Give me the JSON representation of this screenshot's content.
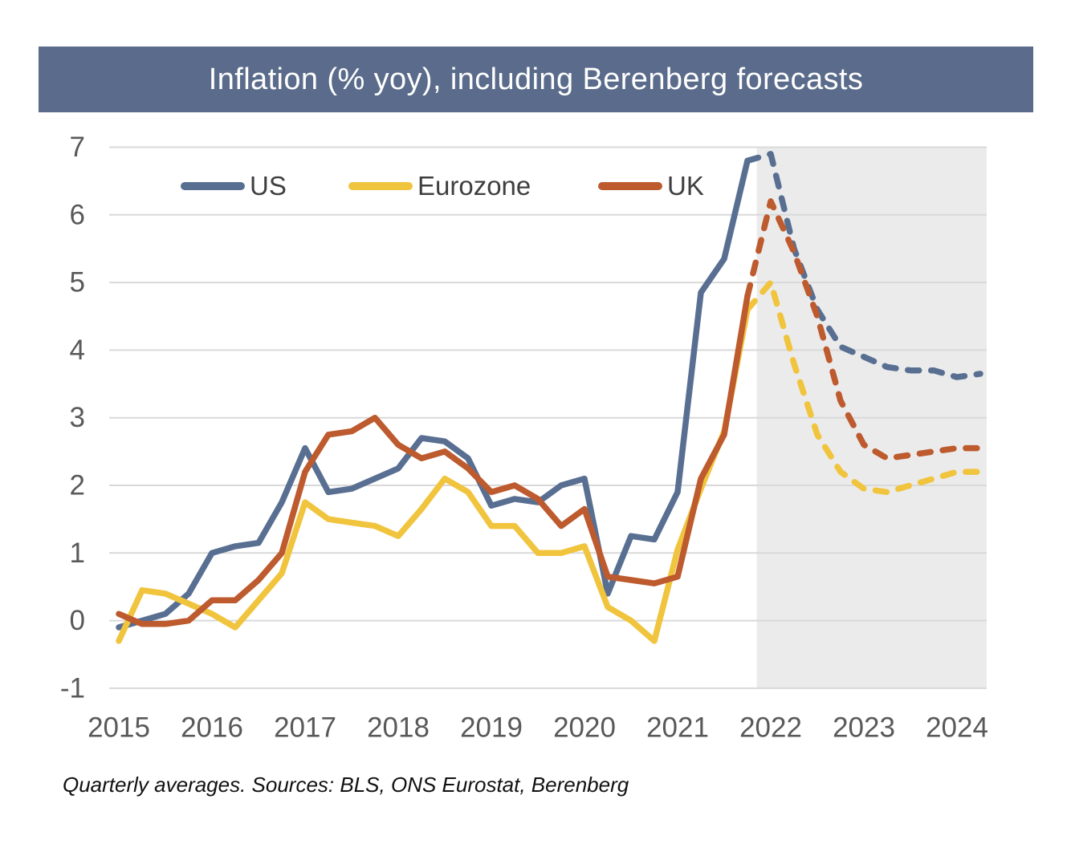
{
  "title": "Inflation (% yoy), including Berenberg forecasts",
  "footnote": "Quarterly averages. Sources: BLS, ONS Eurostat, Berenberg",
  "colors": {
    "title_bar_bg": "#5a6b8b",
    "title_text": "#ffffff",
    "us": "#586f92",
    "eurozone": "#f1c43e",
    "uk": "#bd5a2e",
    "forecast_shade": "#ebebeb",
    "gridline": "#d9d9d9",
    "axis_text": "#595959",
    "legend_text": "#3f3f3f",
    "background": "#ffffff"
  },
  "legend": [
    {
      "label": "US"
    },
    {
      "label": "Eurozone"
    },
    {
      "label": "UK"
    }
  ],
  "chart_data": {
    "type": "line",
    "title": "Inflation (% yoy), including Berenberg forecasts",
    "xlabel": "",
    "ylabel": "",
    "ylim": [
      -1,
      7
    ],
    "y_ticks": [
      7,
      6,
      5,
      4,
      3,
      2,
      1,
      0,
      -1
    ],
    "x_ticks": [
      2015,
      2016,
      2017,
      2018,
      2019,
      2020,
      2021,
      2022,
      2023,
      2024
    ],
    "grid": "horizontal",
    "legend_position": "top-inside",
    "line_style_note": "solid = history, dashed = Berenberg forecast, shaded region = forecast period",
    "forecast_start_index": 27,
    "forecast_shade_start_x": 2021.85,
    "x": [
      2015,
      2015.25,
      2015.5,
      2015.75,
      2016,
      2016.25,
      2016.5,
      2016.75,
      2017,
      2017.25,
      2017.5,
      2017.75,
      2018,
      2018.25,
      2018.5,
      2018.75,
      2019,
      2019.25,
      2019.5,
      2019.75,
      2020,
      2020.25,
      2020.5,
      2020.75,
      2021,
      2021.25,
      2021.5,
      2021.75,
      2022,
      2022.25,
      2022.5,
      2022.75,
      2023,
      2023.25,
      2023.5,
      2023.75,
      2024,
      2024.25
    ],
    "series": [
      {
        "name": "US",
        "color": "#586f92",
        "values": [
          -0.1,
          0.0,
          0.1,
          0.4,
          1.0,
          1.1,
          1.15,
          1.75,
          2.55,
          1.9,
          1.95,
          2.1,
          2.25,
          2.7,
          2.65,
          2.4,
          1.7,
          1.8,
          1.75,
          2.0,
          2.1,
          0.4,
          1.25,
          1.2,
          1.9,
          4.85,
          5.35,
          6.8,
          6.9,
          5.5,
          4.6,
          4.05,
          3.9,
          3.75,
          3.7,
          3.7,
          3.6,
          3.65
        ]
      },
      {
        "name": "Eurozone",
        "color": "#f1c43e",
        "values": [
          -0.3,
          0.45,
          0.4,
          0.25,
          0.1,
          -0.1,
          0.3,
          0.7,
          1.75,
          1.5,
          1.45,
          1.4,
          1.25,
          1.65,
          2.1,
          1.9,
          1.4,
          1.4,
          1.0,
          1.0,
          1.1,
          0.2,
          0.0,
          -0.3,
          1.05,
          1.95,
          2.8,
          4.6,
          5.0,
          3.8,
          2.75,
          2.2,
          1.95,
          1.9,
          2.0,
          2.1,
          2.2,
          2.2
        ]
      },
      {
        "name": "UK",
        "color": "#bd5a2e",
        "values": [
          0.1,
          -0.05,
          -0.05,
          0.0,
          0.3,
          0.3,
          0.6,
          1.0,
          2.2,
          2.75,
          2.8,
          3.0,
          2.6,
          2.4,
          2.5,
          2.25,
          1.9,
          2.0,
          1.8,
          1.4,
          1.65,
          0.65,
          0.6,
          0.55,
          0.65,
          2.1,
          2.75,
          4.8,
          6.2,
          5.45,
          4.5,
          3.25,
          2.6,
          2.4,
          2.45,
          2.5,
          2.55,
          2.55
        ]
      }
    ]
  }
}
